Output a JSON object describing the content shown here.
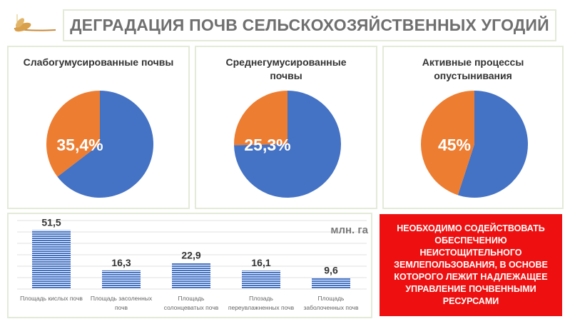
{
  "header": {
    "title": "ДЕГРАДАЦИЯ ПОЧВ СЕЛЬСКОХОЗЯЙСТВЕННЫХ УГОДИЙ"
  },
  "colors": {
    "blue": "#4472c4",
    "orange": "#ed7d31",
    "red": "#ee1010"
  },
  "chart_data": [
    {
      "type": "pie",
      "title": "Слабогумусированные почвы",
      "slices": [
        {
          "name": "other",
          "value": 64.6,
          "color": "#4472c4"
        },
        {
          "name": "share",
          "value": 35.4,
          "color": "#ed7d31"
        }
      ],
      "label": "35,4%"
    },
    {
      "type": "pie",
      "title": "Среднегумусированные почвы",
      "slices": [
        {
          "name": "other",
          "value": 74.7,
          "color": "#4472c4"
        },
        {
          "name": "share",
          "value": 25.3,
          "color": "#ed7d31"
        }
      ],
      "label": "25,3%"
    },
    {
      "type": "pie",
      "title": "Активные процессы опустынивания",
      "slices": [
        {
          "name": "other",
          "value": 55,
          "color": "#4472c4"
        },
        {
          "name": "share",
          "value": 45,
          "color": "#ed7d31"
        }
      ],
      "label": "45%"
    },
    {
      "type": "bar",
      "unit": "млн. га",
      "categories": [
        "Площадь кислых почв",
        "Площадь засоленных почв",
        "Площадь солонцеватых почв",
        "Плозадь переувлажненных почв",
        "Площадь заболоченных почв"
      ],
      "values": [
        51.5,
        16.3,
        22.9,
        16.1,
        9.6
      ],
      "labels": [
        "51,5",
        "16,3",
        "22,9",
        "16,1",
        "9,6"
      ],
      "ylim": [
        0,
        60
      ],
      "grid": true
    }
  ],
  "callout": "Необходимо содействовать обеспечению неистощительного землепользования, в основе которого лежит надлежащее управление почвенными ресурсами"
}
